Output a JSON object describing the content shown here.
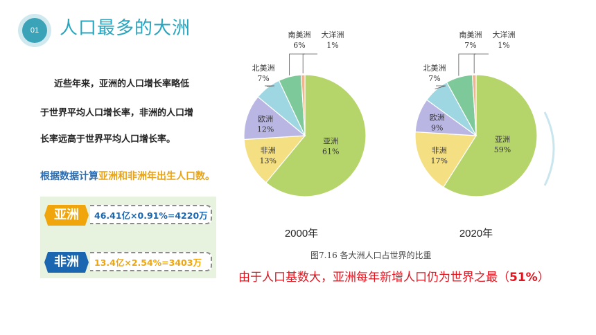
{
  "section": {
    "number": "01",
    "title": "人口最多的大洲"
  },
  "paragraph": {
    "line1": "近些年来，亚洲的人口增长率略低",
    "line2": "于世界平均人口增长率，非洲的人口增",
    "line3": "长率远高于世界平均人口增长率。"
  },
  "hint": {
    "part1": "根据数据计算",
    "part2": "亚洲和非洲年出生人口数。"
  },
  "calc": [
    {
      "label": "亚洲",
      "formula": "46.41亿×0.91%=4220万",
      "tag_color": "#f0a50c",
      "text_color": "#1a66b0"
    },
    {
      "label": "非洲",
      "formula": "13.4亿×2.54%=3403万",
      "tag_color": "#1a66b0",
      "text_color": "#f0a50c"
    }
  ],
  "colors": {
    "亚洲": "#b5d56a",
    "非洲": "#f5df83",
    "欧洲": "#b9b6e3",
    "北美洲": "#9ed6e2",
    "南美洲": "#7ec99a",
    "大洋洲": "#f2b48d"
  },
  "chart_data": [
    {
      "type": "pie",
      "xlabel": "2000年",
      "slices": [
        {
          "name": "亚洲",
          "pct_label": "61%",
          "value": 61
        },
        {
          "name": "非洲",
          "pct_label": "13%",
          "value": 13
        },
        {
          "name": "欧洲",
          "pct_label": "12%",
          "value": 12
        },
        {
          "name": "北美洲",
          "pct_label": "7%",
          "value": 7
        },
        {
          "name": "南美洲",
          "pct_label": "6%",
          "value": 6
        },
        {
          "name": "大洋洲",
          "pct_label": "1%",
          "value": 1
        }
      ]
    },
    {
      "type": "pie",
      "xlabel": "2020年",
      "slices": [
        {
          "name": "亚洲",
          "pct_label": "59%",
          "value": 59
        },
        {
          "name": "非洲",
          "pct_label": "17%",
          "value": 17
        },
        {
          "name": "欧洲",
          "pct_label": "9%",
          "value": 9
        },
        {
          "name": "北美洲",
          "pct_label": "7%",
          "value": 7
        },
        {
          "name": "南美洲",
          "pct_label": "7%",
          "value": 7
        },
        {
          "name": "大洋洲",
          "pct_label": "1%",
          "value": 1
        }
      ]
    }
  ],
  "figure_caption": "图7.16   各大洲人口占世界的比重",
  "conclusion": {
    "text": "由于人口基数大，亚洲每年新增人口仍为世界之最（",
    "pct": "51%",
    "close": "）"
  }
}
